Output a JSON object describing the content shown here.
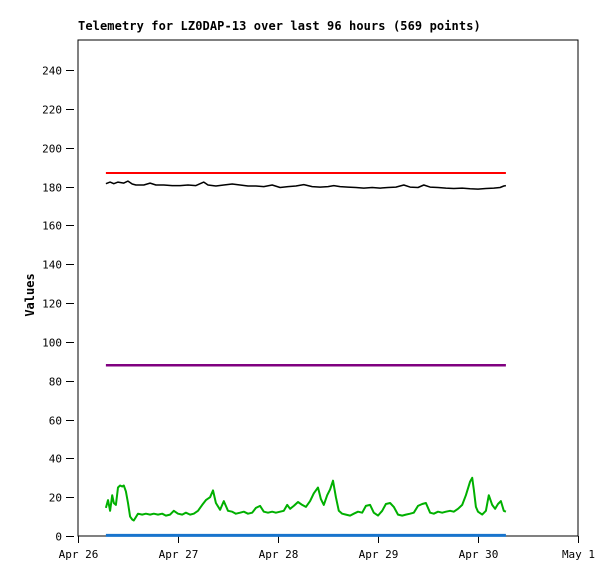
{
  "chart_data": {
    "type": "line",
    "title": "Telemetry for LZ0DAP-13 over last 96 hours (569 points)",
    "ylabel": "Values",
    "xlabel": "",
    "x_unit": "hours since Apr 26 00:00",
    "xlim": [
      0,
      120
    ],
    "ylim": [
      0,
      255.5
    ],
    "grid": false,
    "legend": "none",
    "x_ticks": [
      {
        "pos": 0,
        "label": "Apr 26"
      },
      {
        "pos": 24,
        "label": "Apr 27"
      },
      {
        "pos": 48,
        "label": "Apr 28"
      },
      {
        "pos": 72,
        "label": "Apr 29"
      },
      {
        "pos": 96,
        "label": "Apr 30"
      },
      {
        "pos": 120,
        "label": "May 1"
      }
    ],
    "y_ticks": [
      {
        "pos": 0,
        "label": "0"
      },
      {
        "pos": 20,
        "label": "20"
      },
      {
        "pos": 40,
        "label": "40"
      },
      {
        "pos": 60,
        "label": "60"
      },
      {
        "pos": 80,
        "label": "80"
      },
      {
        "pos": 100,
        "label": "100"
      },
      {
        "pos": 120,
        "label": "120"
      },
      {
        "pos": 140,
        "label": "140"
      },
      {
        "pos": 160,
        "label": "160"
      },
      {
        "pos": 180,
        "label": "180"
      },
      {
        "pos": 200,
        "label": "200"
      },
      {
        "pos": 220,
        "label": "220"
      },
      {
        "pos": 240,
        "label": "240"
      }
    ],
    "series": [
      {
        "name": "series-red-constant",
        "color": "#ff0000",
        "stroke_width": 2,
        "x": [
          6.7,
          102.7
        ],
        "values": [
          187,
          187
        ]
      },
      {
        "name": "series-black-wiggly",
        "color": "#000000",
        "stroke_width": 1.5,
        "x": [
          6.7,
          7.7,
          8.6,
          9.6,
          11.0,
          12.0,
          13.0,
          13.9,
          15.8,
          17.3,
          18.7,
          20.6,
          22.6,
          24.5,
          26.4,
          28.3,
          30.2,
          31.2,
          33.1,
          35.0,
          37.0,
          38.9,
          40.8,
          42.7,
          44.6,
          46.6,
          48.5,
          50.4,
          52.3,
          54.2,
          56.2,
          58.1,
          60.0,
          61.4,
          62.9,
          64.8,
          66.7,
          68.6,
          70.6,
          72.5,
          74.4,
          76.3,
          78.2,
          79.7,
          81.6,
          83.0,
          84.5,
          86.4,
          88.3,
          90.2,
          92.2,
          94.1,
          96.0,
          97.9,
          99.8,
          101.3,
          102.2,
          102.7
        ],
        "values": [
          181.5,
          182.3,
          181.5,
          182.3,
          181.8,
          182.8,
          181.3,
          180.8,
          180.8,
          181.8,
          180.8,
          180.8,
          180.5,
          180.5,
          180.8,
          180.5,
          182.3,
          180.8,
          180.3,
          180.8,
          181.3,
          180.8,
          180.3,
          180.3,
          180.0,
          180.8,
          179.5,
          180.0,
          180.3,
          181.0,
          180.0,
          179.7,
          180.0,
          180.5,
          180.0,
          179.7,
          179.5,
          179.2,
          179.5,
          179.2,
          179.5,
          179.7,
          180.8,
          179.7,
          179.5,
          180.8,
          179.7,
          179.5,
          179.2,
          179.0,
          179.2,
          178.9,
          178.7,
          179.0,
          179.2,
          179.5,
          180.3,
          180.5
        ]
      },
      {
        "name": "series-purple-constant",
        "color": "#800080",
        "stroke_width": 2.5,
        "x": [
          6.7,
          102.7
        ],
        "values": [
          88,
          88
        ]
      },
      {
        "name": "series-green-noisy",
        "color": "#00b000",
        "stroke_width": 2,
        "x": [
          6.7,
          7.2,
          7.7,
          8.2,
          8.6,
          9.1,
          9.6,
          10.1,
          10.6,
          11.0,
          11.5,
          12.0,
          12.5,
          13.0,
          13.4,
          14.4,
          15.4,
          16.3,
          17.3,
          18.2,
          19.2,
          20.2,
          21.1,
          22.1,
          23.0,
          24.0,
          25.0,
          25.9,
          26.9,
          27.8,
          28.8,
          29.8,
          30.7,
          31.7,
          32.4,
          33.1,
          34.1,
          35.0,
          36.0,
          37.0,
          37.9,
          38.9,
          39.8,
          40.8,
          41.8,
          42.7,
          43.7,
          44.6,
          45.6,
          46.6,
          47.5,
          48.5,
          49.4,
          50.2,
          50.9,
          51.8,
          52.8,
          53.8,
          54.7,
          55.7,
          56.6,
          57.6,
          58.3,
          59.0,
          59.8,
          60.5,
          61.2,
          61.9,
          62.6,
          63.4,
          64.3,
          65.3,
          66.2,
          67.2,
          68.2,
          69.1,
          70.1,
          71.0,
          72.0,
          73.0,
          73.9,
          74.9,
          75.8,
          76.8,
          77.8,
          78.7,
          79.7,
          80.6,
          81.6,
          82.6,
          83.5,
          84.5,
          85.4,
          86.4,
          87.4,
          88.3,
          89.3,
          90.2,
          91.2,
          92.2,
          93.1,
          94.1,
          94.6,
          95.0,
          95.5,
          96.0,
          97.0,
          97.9,
          98.6,
          99.4,
          100.1,
          100.8,
          101.5,
          102.2,
          102.7
        ],
        "values": [
          14.5,
          18.5,
          13,
          21,
          17,
          16,
          25,
          26,
          25.5,
          26,
          23,
          17,
          10,
          8.5,
          8,
          11.5,
          11,
          11.5,
          11,
          11.5,
          11,
          11.5,
          10.5,
          11,
          13,
          11.5,
          11,
          12,
          11,
          11.5,
          13,
          16,
          18.5,
          20,
          23.5,
          17,
          13.5,
          18,
          13,
          12.5,
          11.5,
          12,
          12.5,
          11.5,
          12,
          14.5,
          15.5,
          12.5,
          12,
          12.5,
          12,
          12.5,
          13,
          16,
          14,
          15.5,
          17.5,
          16,
          15,
          18,
          22,
          25,
          19,
          16,
          21,
          24,
          28.5,
          20,
          13,
          11.5,
          11,
          10.5,
          11.5,
          12.5,
          12,
          15.5,
          16,
          12,
          10.5,
          13,
          16.5,
          17,
          15,
          11,
          10.5,
          11,
          11.5,
          12,
          15.5,
          16.5,
          17,
          12,
          11.5,
          12.5,
          12,
          12.5,
          13,
          12.5,
          14,
          16,
          21,
          28,
          30,
          24,
          15,
          12.5,
          11,
          13,
          21,
          16,
          14,
          16.5,
          18,
          13,
          12.5
        ]
      },
      {
        "name": "series-blue-baseline",
        "color": "#1874cd",
        "stroke_width": 3,
        "x": [
          6.7,
          102.7
        ],
        "values": [
          0.3,
          0.3
        ]
      }
    ]
  }
}
